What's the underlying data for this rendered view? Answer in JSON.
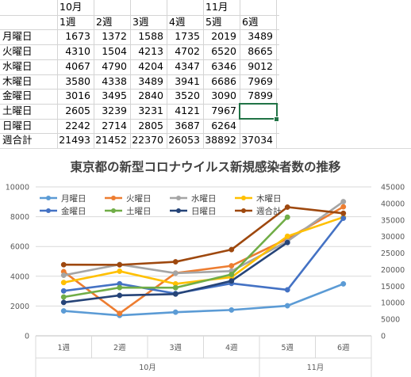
{
  "sheet": {
    "month_headers": [
      {
        "label": "10月",
        "col": 1
      },
      {
        "label": "11月",
        "col": 5
      }
    ],
    "week_headers": [
      "1週",
      "2週",
      "3週",
      "4週",
      "5週",
      "6週"
    ],
    "rows": [
      {
        "label": "月曜日",
        "values": [
          "1673",
          "1372",
          "1588",
          "1735",
          "2019",
          "3489"
        ]
      },
      {
        "label": "火曜日",
        "values": [
          "4310",
          "1504",
          "4213",
          "4702",
          "6520",
          "8665"
        ]
      },
      {
        "label": "水曜日",
        "values": [
          "4067",
          "4790",
          "4204",
          "4347",
          "6346",
          "9012"
        ]
      },
      {
        "label": "木曜日",
        "values": [
          "3580",
          "4338",
          "3489",
          "3941",
          "6686",
          "7969"
        ]
      },
      {
        "label": "金曜日",
        "values": [
          "3016",
          "3495",
          "2840",
          "3520",
          "3090",
          "7899"
        ]
      },
      {
        "label": "土曜日",
        "values": [
          "2605",
          "3239",
          "3231",
          "4121",
          "7967",
          ""
        ]
      },
      {
        "label": "日曜日",
        "values": [
          "2242",
          "2714",
          "2805",
          "3687",
          "6264",
          ""
        ]
      },
      {
        "label": "週合計",
        "values": [
          "21493",
          "21452",
          "22370",
          "26053",
          "38892",
          "37034"
        ]
      }
    ]
  },
  "chart_data": {
    "type": "line",
    "title": "東京都の新型コロナウイルス新規感染者数の推移",
    "categories": [
      "1週",
      "2週",
      "3週",
      "4週",
      "5週",
      "6週"
    ],
    "category_groups": [
      {
        "label": "10月",
        "from": 0,
        "to": 3
      },
      {
        "label": "11月",
        "from": 4,
        "to": 5
      }
    ],
    "y_primary": {
      "min": 0,
      "max": 10000,
      "step": 2000
    },
    "y_secondary": {
      "min": 0,
      "max": 45000,
      "step": 5000
    },
    "legend_position": "top",
    "gridlines": true,
    "series": [
      {
        "name": "月曜日",
        "color": "#5b9bd5",
        "axis": "primary",
        "values": [
          1673,
          1372,
          1588,
          1735,
          2019,
          3489
        ]
      },
      {
        "name": "火曜日",
        "color": "#ed7d31",
        "axis": "primary",
        "values": [
          4310,
          1504,
          4213,
          4702,
          6520,
          8665
        ]
      },
      {
        "name": "水曜日",
        "color": "#a5a5a5",
        "axis": "primary",
        "values": [
          4067,
          4790,
          4204,
          4347,
          6346,
          9012
        ]
      },
      {
        "name": "木曜日",
        "color": "#ffc000",
        "axis": "primary",
        "values": [
          3580,
          4338,
          3489,
          3941,
          6686,
          7969
        ]
      },
      {
        "name": "金曜日",
        "color": "#4472c4",
        "axis": "primary",
        "values": [
          3016,
          3495,
          2840,
          3520,
          3090,
          7899
        ]
      },
      {
        "name": "土曜日",
        "color": "#70ad47",
        "axis": "primary",
        "values": [
          2605,
          3239,
          3231,
          4121,
          7967,
          null
        ]
      },
      {
        "name": "日曜日",
        "color": "#264478",
        "axis": "primary",
        "values": [
          2242,
          2714,
          2805,
          3687,
          6264,
          null
        ]
      },
      {
        "name": "週合計",
        "color": "#9e480e",
        "axis": "secondary",
        "values": [
          21493,
          21452,
          22370,
          26053,
          38892,
          37034
        ]
      }
    ]
  }
}
